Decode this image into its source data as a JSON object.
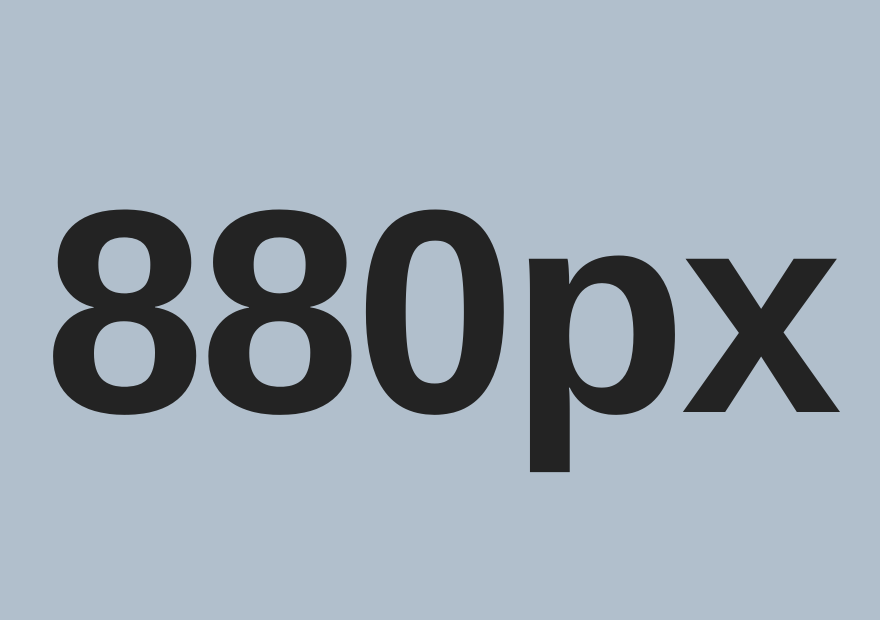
{
  "canvas": {
    "label": "880px"
  },
  "colors": {
    "background": "#b1bfcc",
    "text": "#232323"
  }
}
